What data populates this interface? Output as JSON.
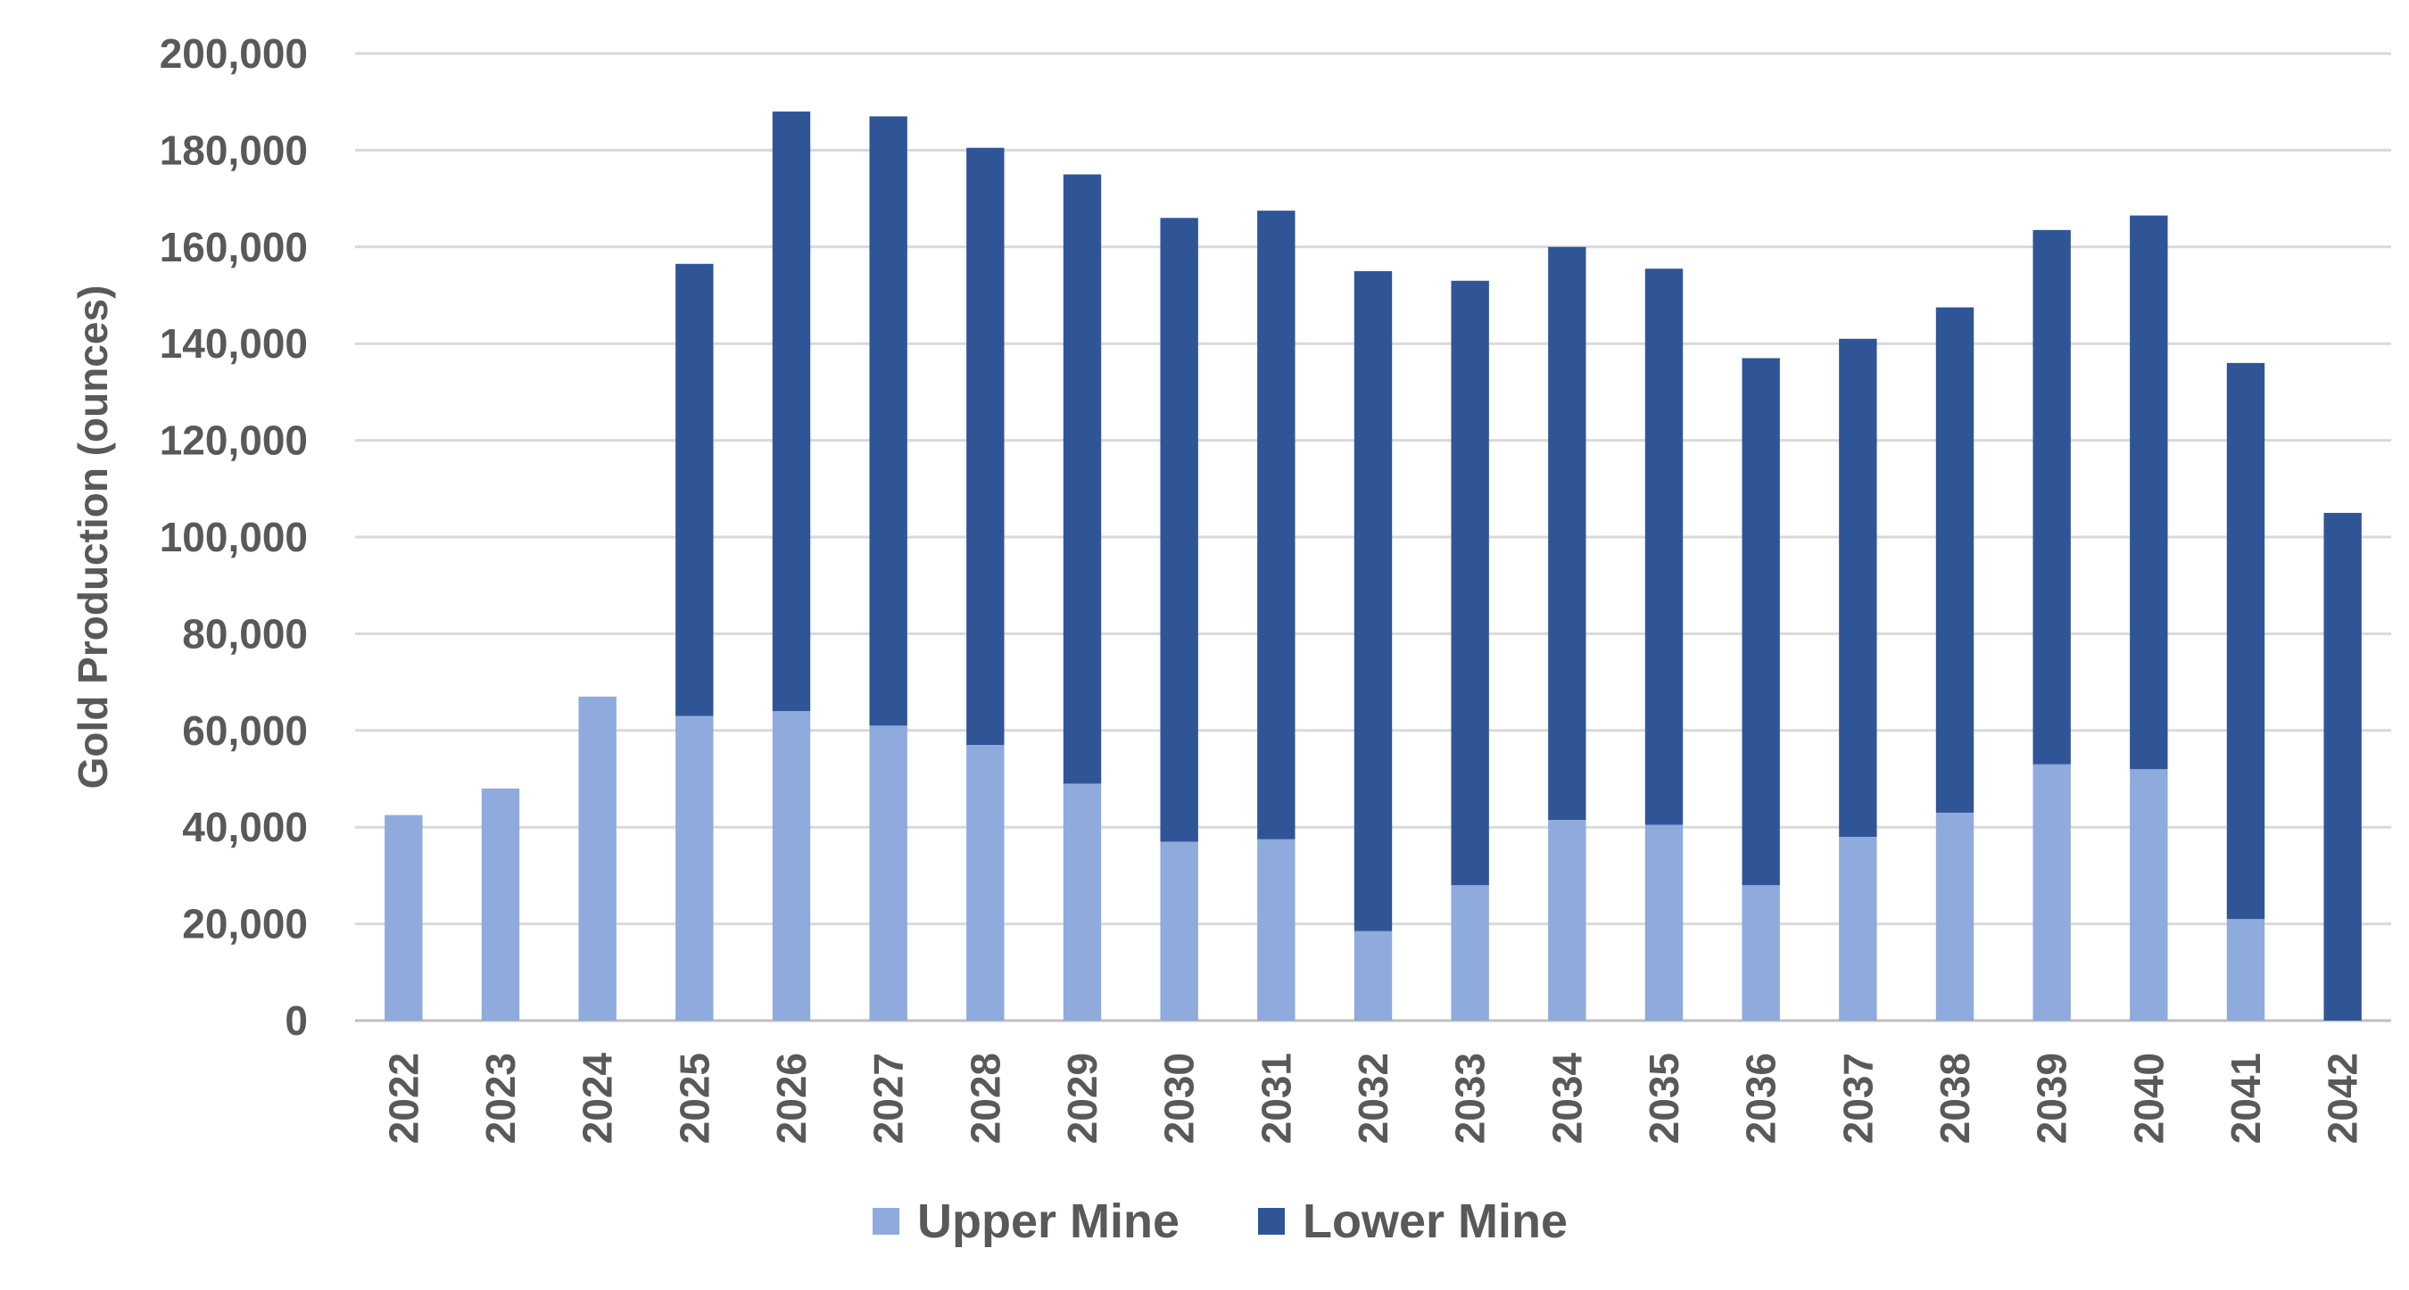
{
  "chart_data": {
    "type": "bar",
    "stacked": true,
    "categories": [
      "2022",
      "2023",
      "2024",
      "2025",
      "2026",
      "2027",
      "2028",
      "2029",
      "2030",
      "2031",
      "2032",
      "2033",
      "2034",
      "2035",
      "2036",
      "2037",
      "2038",
      "2039",
      "2040",
      "2041",
      "2042"
    ],
    "series": [
      {
        "name": "Upper Mine",
        "color": "#8faadc",
        "values": [
          42500,
          48000,
          67000,
          63000,
          64000,
          61000,
          57000,
          49000,
          37000,
          37500,
          18500,
          28000,
          41500,
          40500,
          28000,
          38000,
          43000,
          53000,
          52000,
          21000,
          0
        ]
      },
      {
        "name": "Lower Mine",
        "color": "#2f5597",
        "values": [
          0,
          0,
          0,
          93500,
          124000,
          126000,
          123500,
          126000,
          129000,
          130000,
          136500,
          125000,
          118500,
          115000,
          109000,
          103000,
          104500,
          110500,
          114500,
          115000,
          105000
        ]
      }
    ],
    "title": "",
    "xlabel": "",
    "ylabel": "Gold Production (ounces)",
    "ylim": [
      0,
      200000
    ],
    "yticks": [
      0,
      20000,
      40000,
      60000,
      80000,
      100000,
      120000,
      140000,
      160000,
      180000,
      200000
    ],
    "ytick_labels": [
      "0",
      "20,000",
      "40,000",
      "60,000",
      "80,000",
      "100,000",
      "120,000",
      "140,000",
      "160,000",
      "180,000",
      "200,000"
    ],
    "grid": true,
    "legend_position": "bottom"
  }
}
